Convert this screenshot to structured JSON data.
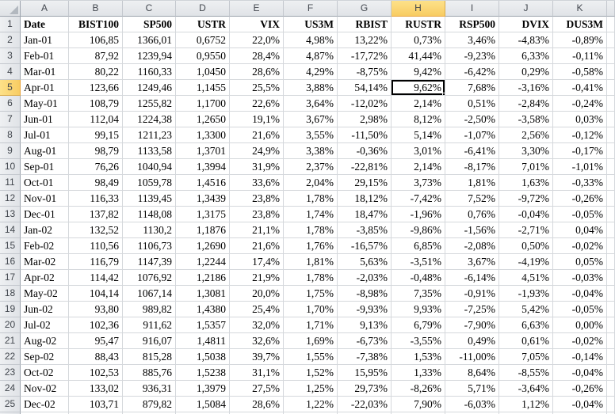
{
  "sheet": {
    "column_letters": [
      "A",
      "B",
      "C",
      "D",
      "E",
      "F",
      "G",
      "H",
      "I",
      "J",
      "K"
    ],
    "row_numbers": [
      "1",
      "2",
      "3",
      "4",
      "5",
      "6",
      "7",
      "8",
      "9",
      "10",
      "11",
      "12",
      "13",
      "14",
      "15",
      "16",
      "17",
      "18",
      "19",
      "20",
      "21",
      "22",
      "23",
      "24",
      "25"
    ],
    "selection": {
      "column": "H",
      "row": 5,
      "value": "9,62%"
    },
    "header_row": [
      "Date",
      "BIST100",
      "SP500",
      "USTR",
      "VIX",
      "US3M",
      "RBIST",
      "RUSTR",
      "RSP500",
      "DVIX",
      "DUS3M"
    ],
    "rows": [
      [
        "Jan-01",
        "106,85",
        "1366,01",
        "0,6752",
        "22,0%",
        "4,98%",
        "13,22%",
        "0,73%",
        "3,46%",
        "-4,83%",
        "-0,89%"
      ],
      [
        "Feb-01",
        "87,92",
        "1239,94",
        "0,9550",
        "28,4%",
        "4,87%",
        "-17,72%",
        "41,44%",
        "-9,23%",
        "6,33%",
        "-0,11%"
      ],
      [
        "Mar-01",
        "80,22",
        "1160,33",
        "1,0450",
        "28,6%",
        "4,29%",
        "-8,75%",
        "9,42%",
        "-6,42%",
        "0,29%",
        "-0,58%"
      ],
      [
        "Apr-01",
        "123,66",
        "1249,46",
        "1,1455",
        "25,5%",
        "3,88%",
        "54,14%",
        "9,62%",
        "7,68%",
        "-3,16%",
        "-0,41%"
      ],
      [
        "May-01",
        "108,79",
        "1255,82",
        "1,1700",
        "22,6%",
        "3,64%",
        "-12,02%",
        "2,14%",
        "0,51%",
        "-2,84%",
        "-0,24%"
      ],
      [
        "Jun-01",
        "112,04",
        "1224,38",
        "1,2650",
        "19,1%",
        "3,67%",
        "2,98%",
        "8,12%",
        "-2,50%",
        "-3,58%",
        "0,03%"
      ],
      [
        "Jul-01",
        "99,15",
        "1211,23",
        "1,3300",
        "21,6%",
        "3,55%",
        "-11,50%",
        "5,14%",
        "-1,07%",
        "2,56%",
        "-0,12%"
      ],
      [
        "Aug-01",
        "98,79",
        "1133,58",
        "1,3701",
        "24,9%",
        "3,38%",
        "-0,36%",
        "3,01%",
        "-6,41%",
        "3,30%",
        "-0,17%"
      ],
      [
        "Sep-01",
        "76,26",
        "1040,94",
        "1,3994",
        "31,9%",
        "2,37%",
        "-22,81%",
        "2,14%",
        "-8,17%",
        "7,01%",
        "-1,01%"
      ],
      [
        "Oct-01",
        "98,49",
        "1059,78",
        "1,4516",
        "33,6%",
        "2,04%",
        "29,15%",
        "3,73%",
        "1,81%",
        "1,63%",
        "-0,33%"
      ],
      [
        "Nov-01",
        "116,33",
        "1139,45",
        "1,3439",
        "23,8%",
        "1,78%",
        "18,12%",
        "-7,42%",
        "7,52%",
        "-9,72%",
        "-0,26%"
      ],
      [
        "Dec-01",
        "137,82",
        "1148,08",
        "1,3175",
        "23,8%",
        "1,74%",
        "18,47%",
        "-1,96%",
        "0,76%",
        "-0,04%",
        "-0,05%"
      ],
      [
        "Jan-02",
        "132,52",
        "1130,2",
        "1,1876",
        "21,1%",
        "1,78%",
        "-3,85%",
        "-9,86%",
        "-1,56%",
        "-2,71%",
        "0,04%"
      ],
      [
        "Feb-02",
        "110,56",
        "1106,73",
        "1,2690",
        "21,6%",
        "1,76%",
        "-16,57%",
        "6,85%",
        "-2,08%",
        "0,50%",
        "-0,02%"
      ],
      [
        "Mar-02",
        "116,79",
        "1147,39",
        "1,2244",
        "17,4%",
        "1,81%",
        "5,63%",
        "-3,51%",
        "3,67%",
        "-4,19%",
        "0,05%"
      ],
      [
        "Apr-02",
        "114,42",
        "1076,92",
        "1,2186",
        "21,9%",
        "1,78%",
        "-2,03%",
        "-0,48%",
        "-6,14%",
        "4,51%",
        "-0,03%"
      ],
      [
        "May-02",
        "104,14",
        "1067,14",
        "1,3081",
        "20,0%",
        "1,75%",
        "-8,98%",
        "7,35%",
        "-0,91%",
        "-1,93%",
        "-0,04%"
      ],
      [
        "Jun-02",
        "93,80",
        "989,82",
        "1,4380",
        "25,4%",
        "1,70%",
        "-9,93%",
        "9,93%",
        "-7,25%",
        "5,42%",
        "-0,05%"
      ],
      [
        "Jul-02",
        "102,36",
        "911,62",
        "1,5357",
        "32,0%",
        "1,71%",
        "9,13%",
        "6,79%",
        "-7,90%",
        "6,63%",
        "0,00%"
      ],
      [
        "Aug-02",
        "95,47",
        "916,07",
        "1,4811",
        "32,6%",
        "1,69%",
        "-6,73%",
        "-3,55%",
        "0,49%",
        "0,61%",
        "-0,02%"
      ],
      [
        "Sep-02",
        "88,43",
        "815,28",
        "1,5038",
        "39,7%",
        "1,55%",
        "-7,38%",
        "1,53%",
        "-11,00%",
        "7,05%",
        "-0,14%"
      ],
      [
        "Oct-02",
        "102,53",
        "885,76",
        "1,5238",
        "31,1%",
        "1,52%",
        "15,95%",
        "1,33%",
        "8,64%",
        "-8,55%",
        "-0,04%"
      ],
      [
        "Nov-02",
        "133,02",
        "936,31",
        "1,3979",
        "27,5%",
        "1,25%",
        "29,73%",
        "-8,26%",
        "5,71%",
        "-3,64%",
        "-0,26%"
      ],
      [
        "Dec-02",
        "103,71",
        "879,82",
        "1,5084",
        "28,6%",
        "1,22%",
        "-22,03%",
        "7,90%",
        "-6,03%",
        "1,12%",
        "-0,04%"
      ]
    ],
    "colors": {
      "header_highlight": "#F8CC62",
      "header_bg": "#E6E8EB",
      "grid_line": "#D5D8DC",
      "selection_border": "#000000"
    }
  }
}
